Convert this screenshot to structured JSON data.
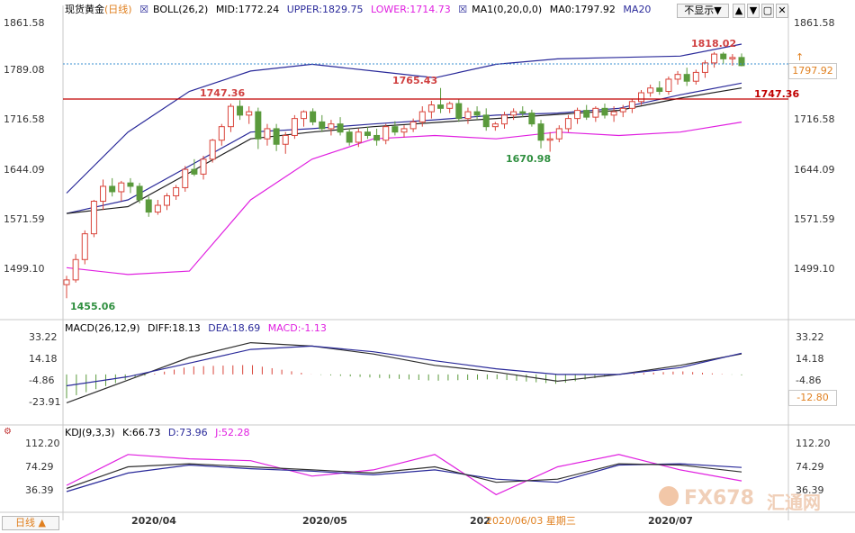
{
  "header": {
    "symbol": "现货黄金",
    "period_tag": "(日线)",
    "boll": "BOLL(26,2)",
    "mid": "MID:1772.24",
    "upper": "UPPER:1829.75",
    "lower": "LOWER:1714.73",
    "ma": "MA1(0,20,0,0)",
    "ma0": "MA0:1797.92",
    "ma20": "MA20",
    "hide_button": "不显示▼"
  },
  "macd_header": {
    "name": "MACD(26,12,9)",
    "diff": "DIFF:18.13",
    "dea": "DEA:18.69",
    "macd": "MACD:-1.13"
  },
  "kdj_header": {
    "name": "KDJ(9,3,3)",
    "k": "K:66.73",
    "d": "D:73.96",
    "j": "J:52.28"
  },
  "price_axis": [
    "1861.58",
    "1789.08",
    "1716.58",
    "1644.09",
    "1571.59",
    "1499.10"
  ],
  "macd_axis": [
    "33.22",
    "14.18",
    "-4.86",
    "-23.91"
  ],
  "macd_right_axis": [
    "33.22",
    "14.18",
    "-4.86"
  ],
  "kdj_axis": [
    "112.20",
    "74.29",
    "36.39"
  ],
  "current_price": "1797.92",
  "resistance_label": "1747.36",
  "macd_current": "-12.80",
  "annotations": {
    "high": "1818.02",
    "a1": "1747.36",
    "a2": "1765.43",
    "low_may": "1670.98",
    "low_mar": "1455.06"
  },
  "x_labels": [
    "2020/04",
    "2020/05",
    "202",
    "2020/07"
  ],
  "cursor_label": "2020/06/03 星期三",
  "period_button": "日线 ▲",
  "watermark": {
    "text": "FX678",
    "cn": "汇通网"
  },
  "colors": {
    "up": "#d9443a",
    "down": "#5a9a3c",
    "boll": "#2a2a9a",
    "lower": "#e020e0",
    "ma": "#202020",
    "hline": "#c00000",
    "dotted": "#3a8fd0"
  },
  "chart_data": [
    {
      "type": "candlestick",
      "title": "现货黄金 (日线)",
      "indicators": [
        "BOLL(26,2)",
        "MA1(0,20,0,0)"
      ],
      "ylim": [
        1455,
        1862
      ],
      "ohlc": [
        [
          1475,
          1488,
          1455,
          1482
        ],
        [
          1482,
          1520,
          1478,
          1512
        ],
        [
          1512,
          1555,
          1505,
          1550
        ],
        [
          1550,
          1600,
          1545,
          1598
        ],
        [
          1598,
          1630,
          1585,
          1620
        ],
        [
          1620,
          1632,
          1605,
          1612
        ],
        [
          1612,
          1628,
          1598,
          1625
        ],
        [
          1625,
          1632,
          1610,
          1620
        ],
        [
          1620,
          1625,
          1595,
          1600
        ],
        [
          1600,
          1605,
          1575,
          1582
        ],
        [
          1582,
          1600,
          1578,
          1592
        ],
        [
          1592,
          1610,
          1585,
          1606
        ],
        [
          1606,
          1622,
          1600,
          1618
        ],
        [
          1618,
          1650,
          1612,
          1645
        ],
        [
          1645,
          1660,
          1635,
          1638
        ],
        [
          1638,
          1665,
          1630,
          1660
        ],
        [
          1660,
          1690,
          1655,
          1688
        ],
        [
          1688,
          1712,
          1680,
          1708
        ],
        [
          1708,
          1742,
          1700,
          1738
        ],
        [
          1738,
          1747,
          1718,
          1725
        ],
        [
          1725,
          1738,
          1712,
          1730
        ],
        [
          1730,
          1736,
          1675,
          1690
        ],
        [
          1690,
          1712,
          1680,
          1705
        ],
        [
          1705,
          1712,
          1672,
          1682
        ],
        [
          1682,
          1700,
          1668,
          1695
        ],
        [
          1695,
          1725,
          1690,
          1720
        ],
        [
          1720,
          1732,
          1708,
          1730
        ],
        [
          1730,
          1735,
          1710,
          1715
        ],
        [
          1715,
          1725,
          1700,
          1705
        ],
        [
          1705,
          1718,
          1695,
          1712
        ],
        [
          1712,
          1722,
          1695,
          1700
        ],
        [
          1700,
          1705,
          1680,
          1685
        ],
        [
          1685,
          1705,
          1678,
          1700
        ],
        [
          1700,
          1708,
          1690,
          1695
        ],
        [
          1695,
          1705,
          1680,
          1688
        ],
        [
          1688,
          1712,
          1682,
          1708
        ],
        [
          1708,
          1716,
          1695,
          1700
        ],
        [
          1700,
          1710,
          1692,
          1705
        ],
        [
          1705,
          1720,
          1700,
          1715
        ],
        [
          1715,
          1738,
          1708,
          1730
        ],
        [
          1730,
          1746,
          1720,
          1740
        ],
        [
          1740,
          1765,
          1728,
          1735
        ],
        [
          1735,
          1745,
          1728,
          1742
        ],
        [
          1742,
          1748,
          1715,
          1720
        ],
        [
          1720,
          1736,
          1712,
          1730
        ],
        [
          1730,
          1738,
          1718,
          1725
        ],
        [
          1725,
          1735,
          1702,
          1708
        ],
        [
          1708,
          1715,
          1702,
          1712
        ],
        [
          1712,
          1730,
          1705,
          1725
        ],
        [
          1725,
          1735,
          1718,
          1730
        ],
        [
          1730,
          1738,
          1722,
          1728
        ],
        [
          1728,
          1733,
          1708,
          1712
        ],
        [
          1712,
          1718,
          1676,
          1688
        ],
        [
          1688,
          1700,
          1671,
          1690
        ],
        [
          1690,
          1710,
          1685,
          1705
        ],
        [
          1705,
          1725,
          1700,
          1720
        ],
        [
          1720,
          1736,
          1712,
          1732
        ],
        [
          1732,
          1740,
          1718,
          1722
        ],
        [
          1722,
          1738,
          1715,
          1735
        ],
        [
          1735,
          1742,
          1720,
          1725
        ],
        [
          1725,
          1738,
          1715,
          1730
        ],
        [
          1730,
          1740,
          1722,
          1735
        ],
        [
          1735,
          1748,
          1728,
          1745
        ],
        [
          1745,
          1762,
          1740,
          1758
        ],
        [
          1758,
          1770,
          1752,
          1765
        ],
        [
          1765,
          1775,
          1755,
          1760
        ],
        [
          1760,
          1782,
          1755,
          1778
        ],
        [
          1778,
          1790,
          1770,
          1785
        ],
        [
          1785,
          1795,
          1768,
          1775
        ],
        [
          1775,
          1792,
          1770,
          1788
        ],
        [
          1788,
          1806,
          1780,
          1802
        ],
        [
          1802,
          1818,
          1795,
          1815
        ],
        [
          1815,
          1818,
          1800,
          1808
        ],
        [
          1808,
          1815,
          1798,
          1810
        ],
        [
          1810,
          1816,
          1797,
          1798
        ]
      ],
      "boll_upper": [
        1610,
        1700,
        1760,
        1790,
        1800,
        1790,
        1780,
        1800,
        1808,
        1810,
        1812,
        1829.75
      ],
      "boll_mid": [
        1580,
        1600,
        1650,
        1700,
        1705,
        1712,
        1718,
        1725,
        1728,
        1735,
        1755,
        1772.24
      ],
      "boll_lower": [
        1500,
        1490,
        1495,
        1600,
        1660,
        1690,
        1695,
        1690,
        1700,
        1695,
        1700,
        1714.73
      ],
      "ma20": [
        1580,
        1590,
        1640,
        1690,
        1700,
        1708,
        1714,
        1720,
        1726,
        1732,
        1750,
        1765
      ]
    },
    {
      "type": "line",
      "title": "MACD(26,12,9)",
      "ylim": [
        -23.91,
        33.22
      ],
      "series": [
        {
          "name": "DIFF",
          "values": [
            -25,
            -5,
            15,
            28,
            25,
            18,
            8,
            2,
            -6,
            0,
            8,
            18.13
          ]
        },
        {
          "name": "DEA",
          "values": [
            -10,
            -2,
            10,
            22,
            25,
            20,
            12,
            5,
            0,
            0,
            6,
            18.69
          ]
        }
      ]
    },
    {
      "type": "line",
      "title": "KDJ(9,3,3)",
      "ylim": [
        20,
        112.2
      ],
      "series": [
        {
          "name": "K",
          "values": [
            40,
            75,
            80,
            75,
            70,
            65,
            75,
            50,
            55,
            80,
            78,
            66.73
          ]
        },
        {
          "name": "D",
          "values": [
            35,
            65,
            78,
            72,
            68,
            62,
            70,
            55,
            50,
            78,
            80,
            73.96
          ]
        },
        {
          "name": "J",
          "values": [
            45,
            95,
            88,
            85,
            60,
            70,
            95,
            30,
            75,
            95,
            70,
            52.28
          ]
        }
      ]
    }
  ]
}
